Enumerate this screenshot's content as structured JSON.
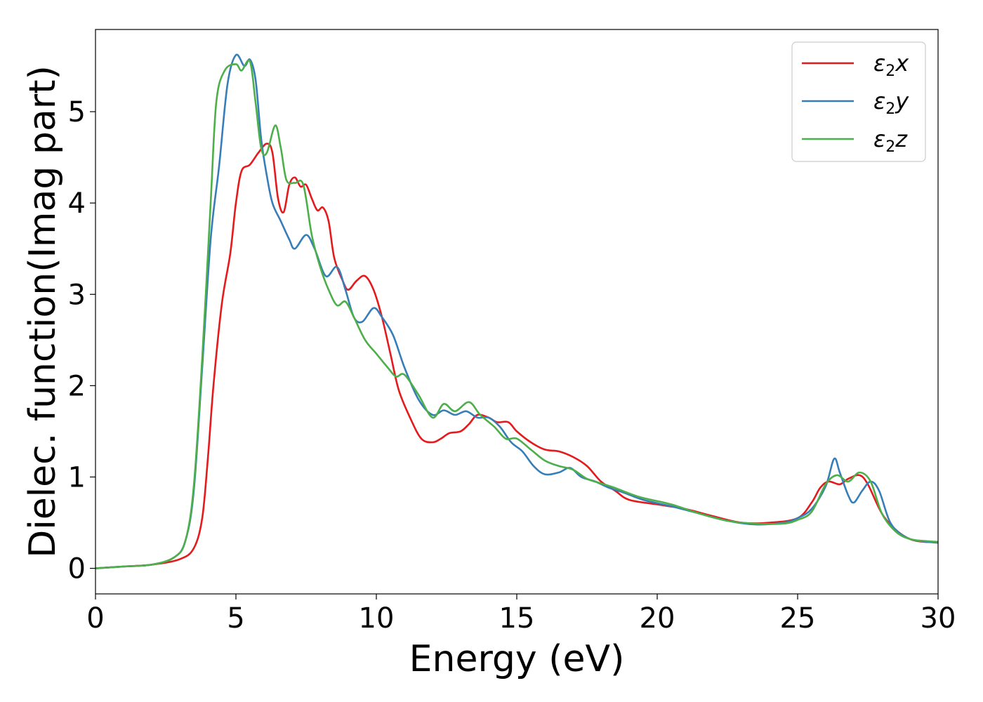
{
  "chart_data": {
    "type": "line",
    "xlabel": "Energy (eV)",
    "ylabel": "Dielec. function(Imag part)",
    "xlim": [
      0,
      30
    ],
    "ylim": [
      -0.28,
      5.9
    ],
    "xticks": [
      0,
      5,
      10,
      15,
      20,
      25,
      30
    ],
    "yticks": [
      0,
      1,
      2,
      3,
      4,
      5
    ],
    "grid": false,
    "legend_position": "top-right",
    "series": [
      {
        "name": "ε2x",
        "legend": {
          "symbol": "ε",
          "sub": "2",
          "axis": "x"
        },
        "color": "#e41a1c",
        "points": [
          [
            0,
            0
          ],
          [
            1,
            0.02
          ],
          [
            2,
            0.04
          ],
          [
            3,
            0.1
          ],
          [
            3.5,
            0.22
          ],
          [
            3.8,
            0.55
          ],
          [
            4,
            1.2
          ],
          [
            4.2,
            2.0
          ],
          [
            4.5,
            2.9
          ],
          [
            4.8,
            3.45
          ],
          [
            5,
            4.0
          ],
          [
            5.2,
            4.35
          ],
          [
            5.5,
            4.42
          ],
          [
            5.8,
            4.55
          ],
          [
            6.1,
            4.65
          ],
          [
            6.3,
            4.55
          ],
          [
            6.5,
            4.05
          ],
          [
            6.7,
            3.9
          ],
          [
            6.9,
            4.2
          ],
          [
            7.1,
            4.28
          ],
          [
            7.3,
            4.18
          ],
          [
            7.5,
            4.2
          ],
          [
            7.7,
            4.05
          ],
          [
            7.9,
            3.92
          ],
          [
            8.1,
            3.95
          ],
          [
            8.3,
            3.8
          ],
          [
            8.5,
            3.4
          ],
          [
            8.8,
            3.15
          ],
          [
            9,
            3.05
          ],
          [
            9.3,
            3.15
          ],
          [
            9.6,
            3.2
          ],
          [
            9.9,
            3.05
          ],
          [
            10.2,
            2.75
          ],
          [
            10.5,
            2.35
          ],
          [
            10.8,
            1.95
          ],
          [
            11.2,
            1.65
          ],
          [
            11.6,
            1.42
          ],
          [
            12,
            1.38
          ],
          [
            12.3,
            1.42
          ],
          [
            12.6,
            1.48
          ],
          [
            13,
            1.5
          ],
          [
            13.3,
            1.58
          ],
          [
            13.6,
            1.68
          ],
          [
            14,
            1.65
          ],
          [
            14.3,
            1.6
          ],
          [
            14.7,
            1.6
          ],
          [
            15,
            1.5
          ],
          [
            15.5,
            1.38
          ],
          [
            16,
            1.3
          ],
          [
            16.5,
            1.28
          ],
          [
            17,
            1.22
          ],
          [
            17.5,
            1.12
          ],
          [
            18,
            0.95
          ],
          [
            18.5,
            0.85
          ],
          [
            19,
            0.75
          ],
          [
            20,
            0.7
          ],
          [
            21,
            0.65
          ],
          [
            22,
            0.57
          ],
          [
            23,
            0.5
          ],
          [
            24,
            0.5
          ],
          [
            25,
            0.55
          ],
          [
            25.5,
            0.72
          ],
          [
            25.8,
            0.88
          ],
          [
            26.1,
            0.95
          ],
          [
            26.5,
            0.92
          ],
          [
            26.8,
            0.98
          ],
          [
            27.2,
            1.02
          ],
          [
            27.5,
            0.92
          ],
          [
            28,
            0.6
          ],
          [
            28.5,
            0.42
          ],
          [
            29,
            0.32
          ],
          [
            29.5,
            0.29
          ],
          [
            30,
            0.29
          ]
        ]
      },
      {
        "name": "ε2y",
        "legend": {
          "symbol": "ε",
          "sub": "2",
          "axis": "y"
        },
        "color": "#377eb8",
        "points": [
          [
            0,
            0
          ],
          [
            1,
            0.02
          ],
          [
            2,
            0.04
          ],
          [
            2.8,
            0.12
          ],
          [
            3.2,
            0.3
          ],
          [
            3.5,
            0.85
          ],
          [
            3.8,
            2.2
          ],
          [
            4.1,
            3.6
          ],
          [
            4.4,
            4.4
          ],
          [
            4.7,
            5.3
          ],
          [
            5,
            5.62
          ],
          [
            5.3,
            5.5
          ],
          [
            5.5,
            5.57
          ],
          [
            5.7,
            5.35
          ],
          [
            5.9,
            4.7
          ],
          [
            6.1,
            4.3
          ],
          [
            6.3,
            4.0
          ],
          [
            6.6,
            3.8
          ],
          [
            6.9,
            3.6
          ],
          [
            7.1,
            3.5
          ],
          [
            7.5,
            3.65
          ],
          [
            7.8,
            3.5
          ],
          [
            8.2,
            3.2
          ],
          [
            8.6,
            3.3
          ],
          [
            8.9,
            3.05
          ],
          [
            9.2,
            2.75
          ],
          [
            9.5,
            2.7
          ],
          [
            9.9,
            2.85
          ],
          [
            10.2,
            2.75
          ],
          [
            10.6,
            2.55
          ],
          [
            11,
            2.2
          ],
          [
            11.5,
            1.85
          ],
          [
            12,
            1.68
          ],
          [
            12.4,
            1.73
          ],
          [
            12.8,
            1.68
          ],
          [
            13.2,
            1.72
          ],
          [
            13.6,
            1.65
          ],
          [
            14,
            1.65
          ],
          [
            14.4,
            1.55
          ],
          [
            14.8,
            1.38
          ],
          [
            15.2,
            1.28
          ],
          [
            15.6,
            1.12
          ],
          [
            16,
            1.03
          ],
          [
            16.5,
            1.05
          ],
          [
            16.9,
            1.1
          ],
          [
            17.3,
            1.0
          ],
          [
            17.8,
            0.95
          ],
          [
            18.3,
            0.88
          ],
          [
            18.8,
            0.83
          ],
          [
            19.5,
            0.75
          ],
          [
            20.5,
            0.68
          ],
          [
            21.5,
            0.6
          ],
          [
            22.5,
            0.52
          ],
          [
            23.5,
            0.48
          ],
          [
            24.5,
            0.5
          ],
          [
            25,
            0.55
          ],
          [
            25.5,
            0.65
          ],
          [
            26,
            0.9
          ],
          [
            26.3,
            1.2
          ],
          [
            26.5,
            1.05
          ],
          [
            26.8,
            0.8
          ],
          [
            27.0,
            0.72
          ],
          [
            27.3,
            0.85
          ],
          [
            27.6,
            0.95
          ],
          [
            27.9,
            0.85
          ],
          [
            28.3,
            0.5
          ],
          [
            28.8,
            0.35
          ],
          [
            29.3,
            0.3
          ],
          [
            30,
            0.28
          ]
        ]
      },
      {
        "name": "ε2z",
        "legend": {
          "symbol": "ε",
          "sub": "2",
          "axis": "z"
        },
        "color": "#4daf4a",
        "points": [
          [
            0,
            0
          ],
          [
            1,
            0.02
          ],
          [
            2,
            0.04
          ],
          [
            2.8,
            0.12
          ],
          [
            3.2,
            0.3
          ],
          [
            3.5,
            0.9
          ],
          [
            3.8,
            2.3
          ],
          [
            4.1,
            4.0
          ],
          [
            4.3,
            5.1
          ],
          [
            4.6,
            5.45
          ],
          [
            5,
            5.52
          ],
          [
            5.2,
            5.45
          ],
          [
            5.5,
            5.55
          ],
          [
            5.7,
            5.1
          ],
          [
            5.9,
            4.6
          ],
          [
            6.1,
            4.55
          ],
          [
            6.4,
            4.85
          ],
          [
            6.6,
            4.6
          ],
          [
            6.8,
            4.25
          ],
          [
            7.1,
            4.22
          ],
          [
            7.4,
            4.2
          ],
          [
            7.7,
            3.65
          ],
          [
            8.0,
            3.3
          ],
          [
            8.3,
            3.05
          ],
          [
            8.6,
            2.88
          ],
          [
            8.9,
            2.92
          ],
          [
            9.2,
            2.75
          ],
          [
            9.6,
            2.5
          ],
          [
            10,
            2.35
          ],
          [
            10.4,
            2.2
          ],
          [
            10.7,
            2.1
          ],
          [
            11,
            2.12
          ],
          [
            11.5,
            1.9
          ],
          [
            12,
            1.65
          ],
          [
            12.4,
            1.8
          ],
          [
            12.8,
            1.72
          ],
          [
            13.3,
            1.82
          ],
          [
            13.7,
            1.68
          ],
          [
            14.2,
            1.55
          ],
          [
            14.6,
            1.42
          ],
          [
            15,
            1.42
          ],
          [
            15.5,
            1.3
          ],
          [
            16,
            1.18
          ],
          [
            16.5,
            1.12
          ],
          [
            17,
            1.08
          ],
          [
            17.5,
            0.98
          ],
          [
            18,
            0.93
          ],
          [
            18.5,
            0.88
          ],
          [
            19,
            0.82
          ],
          [
            19.5,
            0.77
          ],
          [
            20.5,
            0.7
          ],
          [
            21.5,
            0.6
          ],
          [
            22.5,
            0.52
          ],
          [
            23.5,
            0.49
          ],
          [
            24.5,
            0.49
          ],
          [
            25,
            0.53
          ],
          [
            25.5,
            0.62
          ],
          [
            26,
            0.92
          ],
          [
            26.4,
            1.02
          ],
          [
            26.8,
            0.95
          ],
          [
            27.2,
            1.05
          ],
          [
            27.6,
            0.95
          ],
          [
            28,
            0.6
          ],
          [
            28.5,
            0.4
          ],
          [
            29,
            0.32
          ],
          [
            29.5,
            0.3
          ],
          [
            30,
            0.29
          ]
        ]
      }
    ]
  }
}
